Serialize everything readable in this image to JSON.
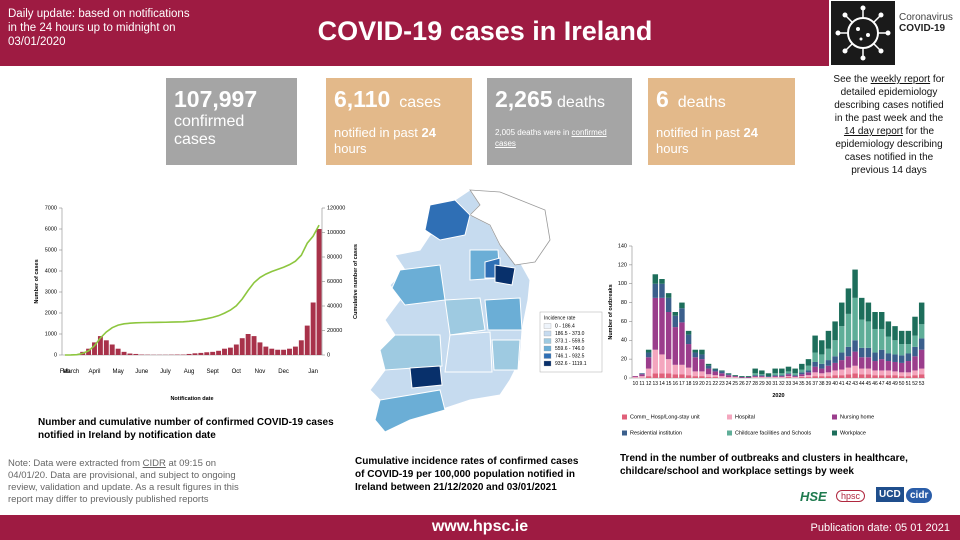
{
  "header": {
    "update_note": "Daily update: based on notifications in the 24 hours up to midnight on 03/01/2020",
    "title": "COVID-19 cases in Ireland",
    "logo_line1": "Coronavirus",
    "logo_line2": "COVID-19"
  },
  "stats": [
    {
      "value": "107,997",
      "unit": "confirmed cases"
    },
    {
      "value": "6,110",
      "unit": "cases",
      "detail": "notified in past",
      "detail_bold": "24",
      "detail_end": "hours"
    },
    {
      "value": "2,265",
      "unit": "deaths",
      "detail": "2,005 deaths were in",
      "link": "confirmed cases"
    },
    {
      "value": "6",
      "unit": "deaths",
      "detail": "notified in past",
      "detail_bold": "24",
      "detail_end": "hours"
    }
  ],
  "side_note": {
    "part1": "See the",
    "link1": "weekly report",
    "part2": "for detailed epidemiology describing cases notified in the past week and the",
    "link2": "14 day report",
    "part3": "for the epidemiology describing cases notified in the previous 14 days"
  },
  "chart_data": [
    {
      "type": "bar",
      "title": "Number and cumulative number of confirmed COVID-19 cases notified in Ireland by notification date",
      "x_label": "Notification date",
      "y_label": "Number of cases",
      "y2_label": "Cumulative number of cases",
      "categories": [
        "Feb",
        "March",
        null,
        null,
        null,
        "April",
        null,
        null,
        null,
        "May",
        null,
        null,
        null,
        "June",
        null,
        null,
        null,
        "July",
        null,
        null,
        null,
        "Aug",
        null,
        null,
        null,
        "Sept",
        null,
        null,
        null,
        "Oct",
        null,
        null,
        null,
        "Nov",
        null,
        null,
        null,
        "Dec",
        null,
        null,
        null,
        null,
        "Jan",
        null
      ],
      "series": [
        {
          "name": "Cases",
          "color": "#a8324a",
          "values": [
            0,
            5,
            30,
            150,
            300,
            600,
            900,
            700,
            500,
            300,
            150,
            70,
            50,
            20,
            15,
            10,
            10,
            10,
            15,
            20,
            20,
            50,
            80,
            100,
            130,
            150,
            200,
            300,
            350,
            500,
            800,
            1000,
            900,
            600,
            400,
            300,
            250,
            250,
            300,
            400,
            700,
            1400,
            2500,
            6000
          ]
        },
        {
          "name": "Cumulative cases",
          "color": "#8dc63f",
          "axis": "y2",
          "values": [
            0,
            35,
            245,
            1295,
            3395,
            7595,
            13895,
            18795,
            22295,
            24395,
            25445,
            25935,
            26285,
            26425,
            26530,
            26600,
            26670,
            26740,
            26845,
            26985,
            27125,
            27475,
            28035,
            28735,
            29645,
            30695,
            32095,
            34195,
            36645,
            40145,
            45745,
            52745,
            59045,
            63245,
            66045,
            68145,
            69895,
            71645,
            73745,
            76545,
            81445,
            91245,
            97000,
            106000
          ]
        }
      ],
      "ylim": [
        0,
        7000
      ],
      "yticks": [
        0,
        1000,
        2000,
        3000,
        4000,
        5000,
        6000,
        7000
      ],
      "y2lim": [
        0,
        120000
      ],
      "y2ticks": [
        0,
        20000,
        40000,
        60000,
        80000,
        100000,
        120000
      ],
      "grid": false
    },
    {
      "type": "stacked_bar",
      "title": "Trend in the number of outbreaks and clusters in healthcare, childcare/school and workplace settings by week",
      "x_label": "2020",
      "y_label": "Number of outbreaks",
      "categories": [
        "10",
        "11",
        "12",
        "13",
        "14",
        "15",
        "16",
        "17",
        "18",
        "19",
        "20",
        "21",
        "22",
        "23",
        "24",
        "25",
        "26",
        "27",
        "28",
        "29",
        "30",
        "31",
        "32",
        "33",
        "34",
        "35",
        "36",
        "37",
        "38",
        "39",
        "40",
        "41",
        "42",
        "43",
        "44",
        "45",
        "46",
        "47",
        "48",
        "49",
        "50",
        "51",
        "52",
        "53"
      ],
      "series": [
        {
          "name": "Comm_ Hosp/Long-stay unit",
          "color": "#e0607a",
          "values": [
            0,
            0,
            2,
            5,
            5,
            5,
            4,
            4,
            3,
            2,
            2,
            1,
            1,
            0,
            0,
            0,
            0,
            0,
            0,
            0,
            0,
            0,
            0,
            1,
            0,
            1,
            1,
            2,
            2,
            2,
            3,
            3,
            4,
            5,
            4,
            4,
            3,
            3,
            3,
            3,
            2,
            2,
            3,
            4
          ]
        },
        {
          "name": "Hospital",
          "color": "#f4a6be",
          "values": [
            1,
            2,
            8,
            25,
            20,
            15,
            10,
            10,
            8,
            5,
            5,
            3,
            2,
            2,
            1,
            1,
            0,
            0,
            1,
            1,
            1,
            1,
            1,
            1,
            1,
            1,
            2,
            4,
            3,
            4,
            5,
            6,
            7,
            8,
            6,
            6,
            5,
            5,
            5,
            4,
            4,
            4,
            5,
            6
          ]
        },
        {
          "name": "Nursing home",
          "color": "#9b3d8c",
          "values": [
            1,
            2,
            12,
            55,
            60,
            50,
            40,
            45,
            25,
            15,
            13,
            6,
            4,
            3,
            2,
            1,
            1,
            1,
            1,
            1,
            0,
            1,
            1,
            2,
            1,
            2,
            3,
            6,
            5,
            7,
            8,
            10,
            12,
            15,
            12,
            12,
            10,
            12,
            10,
            10,
            10,
            12,
            15,
            20
          ]
        },
        {
          "name": "Residential institution",
          "color": "#3b5f8c",
          "values": [
            0,
            1,
            5,
            15,
            15,
            15,
            12,
            15,
            10,
            5,
            5,
            3,
            2,
            2,
            1,
            0,
            0,
            0,
            1,
            1,
            1,
            1,
            1,
            1,
            1,
            2,
            2,
            5,
            5,
            6,
            7,
            8,
            10,
            12,
            10,
            10,
            9,
            10,
            8,
            8,
            8,
            8,
            10,
            12
          ]
        },
        {
          "name": "Childcare facilities and Schools",
          "color": "#5fae98",
          "values": [
            0,
            0,
            0,
            0,
            0,
            0,
            0,
            0,
            0,
            0,
            0,
            0,
            0,
            0,
            0,
            0,
            0,
            0,
            2,
            1,
            0,
            2,
            2,
            2,
            2,
            3,
            5,
            10,
            10,
            12,
            17,
            28,
            35,
            45,
            30,
            28,
            25,
            22,
            18,
            15,
            12,
            10,
            12,
            15
          ]
        },
        {
          "name": "Workplace",
          "color": "#1d6e5b",
          "values": [
            0,
            0,
            3,
            10,
            5,
            5,
            4,
            6,
            4,
            3,
            5,
            2,
            1,
            1,
            1,
            1,
            1,
            1,
            5,
            4,
            3,
            5,
            5,
            5,
            5,
            6,
            7,
            18,
            15,
            19,
            20,
            25,
            27,
            30,
            23,
            20,
            18,
            18,
            16,
            15,
            14,
            14,
            20,
            23
          ]
        }
      ],
      "ylim": [
        0,
        140
      ],
      "yticks": [
        0,
        20,
        40,
        60,
        80,
        100,
        120,
        140
      ],
      "grid": false
    }
  ],
  "map": {
    "caption": "Cumulative incidence rates of confirmed cases of COVID-19 per 100,000 population notified in Ireland between 21/12/2020 and 03/01/2021",
    "legend_title": "Incidence rate",
    "legend": [
      {
        "label": "0 - 186.4",
        "color": "#eef4fb"
      },
      {
        "label": "186.5 - 373.0",
        "color": "#c6dbef"
      },
      {
        "label": "373.1 - 559.5",
        "color": "#9ecae1"
      },
      {
        "label": "559.6 - 746.0",
        "color": "#6baed6"
      },
      {
        "label": "746.1 - 932.5",
        "color": "#2f6fb5"
      },
      {
        "label": "932.6 - 1119.1",
        "color": "#08306b"
      }
    ]
  },
  "note": {
    "part1": "Note: Data were extracted from",
    "link": "CIDR",
    "part2": "at 09:15 on 04/01/20. Data are provisional, and subject to ongoing review, validation and update. As a result figures in this report may differ to previously published reports"
  },
  "partner_logos": [
    "HSE",
    "hpsc",
    "UCD",
    "cidr"
  ],
  "footer": {
    "url": "www.hpsc.ie",
    "publication": "Publication date: 05 01 2021"
  }
}
